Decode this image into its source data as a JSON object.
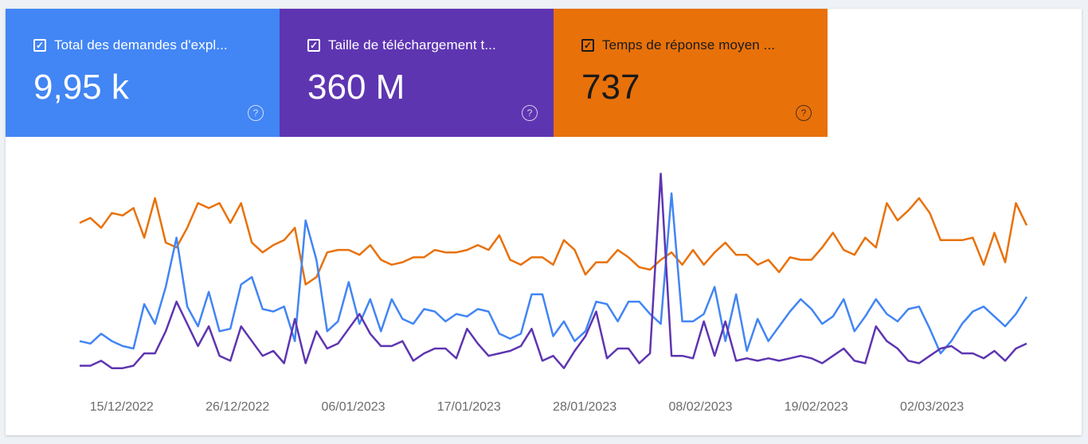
{
  "metrics": [
    {
      "label": "Total des demandes d'expl...",
      "value": "9,95 k",
      "help": "?",
      "color": "#4285f4",
      "text_color": "#ffffff"
    },
    {
      "label": "Taille de téléchargement t...",
      "value": "360 M",
      "help": "?",
      "color": "#5e35b1",
      "text_color": "#ffffff"
    },
    {
      "label": "Temps de réponse moyen ...",
      "value": "737",
      "help": "?",
      "color": "#e8710a",
      "text_color": "#1a1a1a"
    }
  ],
  "chart_data": {
    "type": "line",
    "x_start": "2022-12-11",
    "x_end": "2023-03-11",
    "tick_labels": [
      "15/12/2022",
      "26/12/2022",
      "06/01/2023",
      "17/01/2023",
      "28/01/2023",
      "08/02/2023",
      "19/02/2023",
      "02/03/2023"
    ],
    "tick_dates": [
      "2022-12-15",
      "2022-12-26",
      "2023-01-06",
      "2023-01-17",
      "2023-01-28",
      "2023-02-08",
      "2023-02-19",
      "2023-03-02"
    ],
    "grid": false,
    "legend": "none",
    "y_scale": "independent per series",
    "series": [
      {
        "color": "#e8710a",
        "values": [
          62,
          64,
          60,
          66,
          65,
          68,
          56,
          72,
          54,
          52,
          60,
          70,
          68,
          70,
          62,
          70,
          54,
          50,
          53,
          55,
          60,
          37,
          40,
          50,
          51,
          51,
          49,
          53,
          47,
          45,
          46,
          48,
          48,
          51,
          50,
          50,
          51,
          53,
          51,
          57,
          47,
          45,
          48,
          48,
          45,
          55,
          51,
          41,
          46,
          46,
          51,
          48,
          44,
          43,
          47,
          50,
          45,
          51,
          45,
          50,
          54,
          49,
          49,
          45,
          47,
          42,
          48,
          47,
          47,
          52,
          58,
          51,
          49,
          56,
          52,
          70,
          63,
          67,
          72,
          66,
          55,
          55,
          55,
          56,
          45,
          58,
          46,
          70,
          61
        ],
        "range": [
          0,
          84
        ]
      },
      {
        "color": "#4285f4",
        "values": [
          14,
          13,
          17,
          14,
          12,
          11,
          29,
          21,
          36,
          56,
          28,
          20,
          34,
          18,
          19,
          37,
          40,
          27,
          26,
          28,
          14,
          63,
          47,
          18,
          22,
          38,
          21,
          31,
          18,
          31,
          23,
          21,
          27,
          26,
          22,
          25,
          24,
          27,
          26,
          17,
          15,
          17,
          33,
          33,
          16,
          22,
          14,
          18,
          30,
          29,
          22,
          30,
          30,
          25,
          21,
          74,
          22,
          22,
          25,
          36,
          14,
          33,
          10,
          23,
          14,
          20,
          26,
          31,
          27,
          21,
          24,
          31,
          18,
          24,
          31,
          25,
          22,
          27,
          28,
          19,
          9,
          14,
          21,
          26,
          28,
          24,
          20,
          25,
          32
        ],
        "range": [
          0,
          84
        ]
      },
      {
        "color": "#5e35b1",
        "values": [
          4,
          4,
          6,
          3,
          3,
          4,
          9,
          9,
          18,
          30,
          21,
          12,
          20,
          8,
          6,
          20,
          14,
          8,
          10,
          5,
          23,
          5,
          18,
          11,
          13,
          19,
          25,
          17,
          12,
          12,
          14,
          6,
          9,
          11,
          11,
          7,
          19,
          13,
          8,
          9,
          10,
          12,
          19,
          6,
          8,
          3,
          10,
          16,
          26,
          7,
          11,
          11,
          5,
          9,
          82,
          8,
          8,
          7,
          22,
          8,
          22,
          6,
          7,
          6,
          7,
          6,
          7,
          8,
          7,
          5,
          8,
          11,
          6,
          5,
          20,
          14,
          11,
          6,
          5,
          8,
          11,
          12,
          9,
          9,
          7,
          10,
          6,
          11,
          13
        ],
        "range": [
          0,
          84
        ]
      }
    ]
  }
}
